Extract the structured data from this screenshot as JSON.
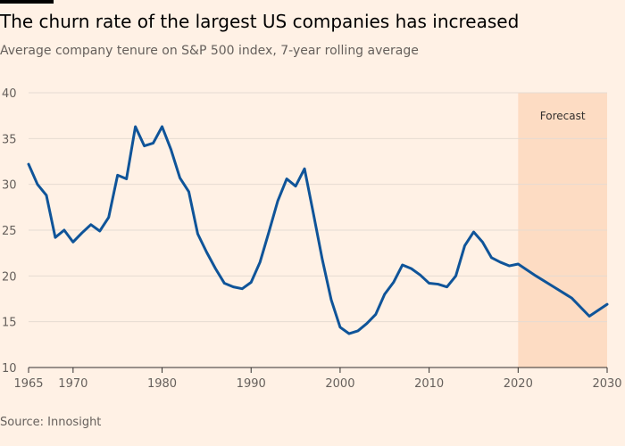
{
  "title": "The churn rate of the largest US companies has increased",
  "subtitle": "Average company tenure on S&P 500 index, 7-year rolling average",
  "source": "Source: Innosight",
  "colors": {
    "background": "#fff1e5",
    "line": "#0f5499",
    "forecast_band": "#fddcc3",
    "grid": "#e6dbd2",
    "axis": "#33302e"
  },
  "chart_data": {
    "type": "line",
    "title": "The churn rate of the largest US companies has increased",
    "subtitle": "Average company tenure on S&P 500 index, 7-year rolling average",
    "xlabel": "",
    "ylabel": "",
    "xlim": [
      1965,
      2030
    ],
    "ylim": [
      10,
      40
    ],
    "x_ticks": [
      1965,
      1970,
      1980,
      1990,
      2000,
      2010,
      2020,
      2030
    ],
    "y_ticks": [
      10,
      15,
      20,
      25,
      30,
      35,
      40
    ],
    "grid": true,
    "forecast_band": {
      "label": "Forecast",
      "from": 2020,
      "to": 2030
    },
    "series": [
      {
        "points": [
          [
            1965,
            32.2
          ],
          [
            1966,
            30.0
          ],
          [
            1967,
            28.8
          ],
          [
            1968,
            24.2
          ],
          [
            1969,
            25.0
          ],
          [
            1970,
            23.7
          ],
          [
            1971,
            24.7
          ],
          [
            1972,
            25.6
          ],
          [
            1973,
            24.9
          ],
          [
            1974,
            26.4
          ],
          [
            1975,
            31.0
          ],
          [
            1976,
            30.6
          ],
          [
            1977,
            36.3
          ],
          [
            1978,
            34.2
          ],
          [
            1979,
            34.5
          ],
          [
            1980,
            36.3
          ],
          [
            1981,
            33.8
          ],
          [
            1982,
            30.7
          ],
          [
            1983,
            29.2
          ],
          [
            1984,
            24.6
          ],
          [
            1985,
            22.6
          ],
          [
            1986,
            20.8
          ],
          [
            1987,
            19.2
          ],
          [
            1988,
            18.8
          ],
          [
            1989,
            18.6
          ],
          [
            1990,
            19.3
          ],
          [
            1991,
            21.5
          ],
          [
            1992,
            24.8
          ],
          [
            1993,
            28.2
          ],
          [
            1994,
            30.6
          ],
          [
            1995,
            29.8
          ],
          [
            1996,
            31.7
          ],
          [
            1997,
            26.8
          ],
          [
            1998,
            21.8
          ],
          [
            1999,
            17.4
          ],
          [
            2000,
            14.4
          ],
          [
            2001,
            13.7
          ],
          [
            2002,
            14.0
          ],
          [
            2003,
            14.8
          ],
          [
            2004,
            15.8
          ],
          [
            2005,
            18.0
          ],
          [
            2006,
            19.3
          ],
          [
            2007,
            21.2
          ],
          [
            2008,
            20.8
          ],
          [
            2009,
            20.1
          ],
          [
            2010,
            19.2
          ],
          [
            2011,
            19.1
          ],
          [
            2012,
            18.8
          ],
          [
            2013,
            20.0
          ],
          [
            2014,
            23.3
          ],
          [
            2015,
            24.8
          ],
          [
            2016,
            23.7
          ],
          [
            2017,
            22.0
          ],
          [
            2018,
            21.5
          ],
          [
            2019,
            21.1
          ],
          [
            2020,
            21.3
          ],
          [
            2022,
            20.0
          ],
          [
            2024,
            18.8
          ],
          [
            2026,
            17.6
          ],
          [
            2028,
            15.6
          ],
          [
            2030,
            16.9
          ]
        ]
      }
    ]
  }
}
